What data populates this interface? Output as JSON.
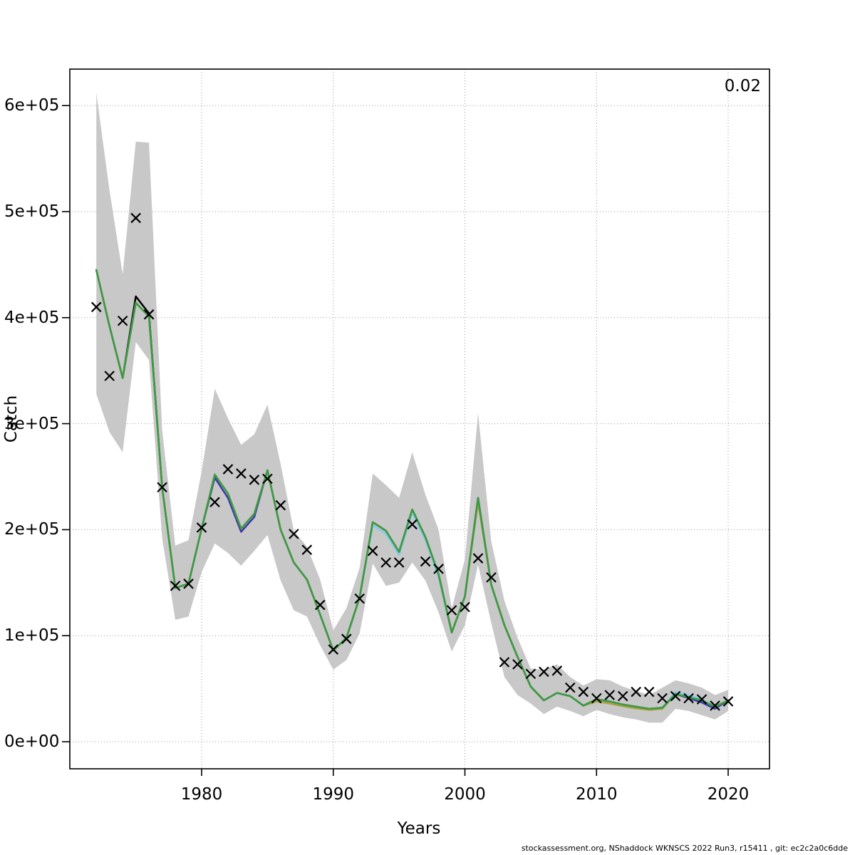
{
  "figure": {
    "ylabel": "Catch",
    "xlabel": "Years",
    "annotation_top_right": "0.02",
    "footer": "stockassessment.org, NShaddock WKNSCS 2022 Run3, r15411 , git: ec2c2a0c6dde"
  },
  "chart_data": {
    "type": "line",
    "title": "",
    "xlabel": "Years",
    "ylabel": "Catch",
    "legend_position": "none",
    "grid": "dotted",
    "x_ticks": [
      1980,
      1990,
      2000,
      2010,
      2020
    ],
    "y_ticks": [
      "0e+00",
      "1e+05",
      "2e+05",
      "3e+05",
      "4e+05",
      "5e+05",
      "6e+05"
    ],
    "y_tick_values": [
      0,
      100000,
      200000,
      300000,
      400000,
      500000,
      600000
    ],
    "xlim": [
      1970.0,
      2023.1
    ],
    "ylim": [
      -25500,
      634600
    ],
    "years": [
      1972,
      1973,
      1974,
      1975,
      1976,
      1977,
      1978,
      1979,
      1980,
      1981,
      1982,
      1983,
      1984,
      1985,
      1986,
      1987,
      1988,
      1989,
      1990,
      1991,
      1992,
      1993,
      1994,
      1995,
      1996,
      1997,
      1998,
      1999,
      2000,
      2001,
      2002,
      2003,
      2004,
      2005,
      2006,
      2007,
      2008,
      2009,
      2010,
      2011,
      2012,
      2013,
      2014,
      2015,
      2016,
      2017,
      2018,
      2019,
      2020
    ],
    "band": {
      "label": "confidence-interval",
      "color": "#c8c8c8",
      "top": [
        612000,
        520000,
        441000,
        566000,
        565000,
        294000,
        185000,
        190000,
        255000,
        333000,
        305000,
        280000,
        290000,
        318000,
        262000,
        199000,
        184000,
        153000,
        105000,
        126000,
        164000,
        253000,
        242000,
        230000,
        273000,
        233000,
        200000,
        126000,
        172000,
        310000,
        189000,
        133000,
        98000,
        69000,
        68000,
        73000,
        61000,
        53000,
        59000,
        58000,
        52000,
        48000,
        44000,
        51000,
        58000,
        55000,
        51000,
        44000,
        49000
      ],
      "bottom": [
        328000,
        292000,
        273000,
        377000,
        360000,
        192000,
        115000,
        118000,
        160000,
        187000,
        178000,
        166000,
        180000,
        195000,
        152000,
        124000,
        118000,
        91000,
        68000,
        77000,
        102000,
        168000,
        147000,
        150000,
        169000,
        152000,
        122000,
        85000,
        110000,
        167000,
        112000,
        61000,
        44000,
        36000,
        26000,
        33000,
        29000,
        24000,
        30000,
        26000,
        23000,
        21000,
        18000,
        18000,
        31000,
        29000,
        25000,
        21000,
        29000
      ]
    },
    "series": [
      {
        "name": "run-black",
        "color": "#000000",
        "values": [
          445000,
          392000,
          343000,
          420000,
          404000,
          240000,
          145000,
          149000,
          201000,
          252000,
          234000,
          201000,
          215000,
          256000,
          200000,
          169000,
          153000,
          120000,
          86000,
          98000,
          136000,
          207000,
          199000,
          179000,
          219000,
          193000,
          158000,
          103000,
          137000,
          230000,
          148000,
          110000,
          80000,
          52000,
          39000,
          46000,
          43000,
          34000,
          40000,
          38000,
          35000,
          33000,
          31000,
          32000,
          45000,
          42000,
          39000,
          33000,
          39000
        ]
      },
      {
        "name": "run-skyblue",
        "color": "#85cbe8",
        "values": [
          445000,
          392000,
          343000,
          414000,
          401000,
          240000,
          145000,
          149000,
          201000,
          252000,
          234000,
          201000,
          215000,
          256000,
          200000,
          169000,
          153000,
          120000,
          86000,
          98000,
          136000,
          204000,
          196000,
          176000,
          216000,
          190000,
          155000,
          103000,
          137000,
          230000,
          148000,
          110000,
          80000,
          52000,
          39000,
          46000,
          43000,
          34000,
          40000,
          38000,
          35000,
          33000,
          31000,
          32000,
          47000,
          44000,
          40000,
          33000,
          39000
        ]
      },
      {
        "name": "run-blue",
        "color": "#3b35ad",
        "values": [
          445000,
          392000,
          343000,
          414000,
          401000,
          240000,
          145000,
          149000,
          201000,
          249000,
          230000,
          198000,
          212000,
          256000,
          200000,
          169000,
          153000,
          120000,
          86000,
          98000,
          136000,
          207000,
          199000,
          179000,
          219000,
          193000,
          158000,
          103000,
          137000,
          230000,
          148000,
          110000,
          80000,
          52000,
          39000,
          46000,
          43000,
          34000,
          40000,
          38000,
          35000,
          33000,
          31000,
          32000,
          45000,
          41000,
          37000,
          31000,
          39000
        ]
      },
      {
        "name": "run-olive",
        "color": "#a8a03a",
        "values": [
          445000,
          392000,
          343000,
          414000,
          401000,
          240000,
          145000,
          149000,
          201000,
          252000,
          234000,
          201000,
          215000,
          256000,
          200000,
          169000,
          153000,
          120000,
          86000,
          98000,
          136000,
          207000,
          199000,
          179000,
          219000,
          193000,
          158000,
          103000,
          137000,
          226000,
          148000,
          110000,
          80000,
          52000,
          39000,
          46000,
          43000,
          34000,
          38000,
          36000,
          33500,
          31500,
          30000,
          31000,
          45000,
          42000,
          39000,
          33000,
          39000
        ]
      },
      {
        "name": "run-green",
        "color": "#3c9b41",
        "values": [
          445000,
          392000,
          343000,
          414000,
          401000,
          240000,
          145000,
          149000,
          201000,
          252000,
          234000,
          201000,
          215000,
          256000,
          200000,
          169000,
          153000,
          120000,
          86000,
          98000,
          136000,
          207000,
          199000,
          179000,
          219000,
          193000,
          158000,
          103000,
          137000,
          230000,
          148000,
          110000,
          80000,
          52000,
          39000,
          46000,
          43000,
          34000,
          40000,
          38000,
          35000,
          33000,
          31000,
          32000,
          45000,
          42000,
          39000,
          33000,
          39000
        ]
      }
    ],
    "observed": {
      "name": "observed-catch",
      "marker": "x",
      "color": "#000000",
      "values": [
        410000,
        345000,
        397000,
        494000,
        403000,
        240000,
        147000,
        149000,
        202000,
        226000,
        257000,
        253000,
        247000,
        248000,
        223000,
        196000,
        181000,
        129000,
        87000,
        97000,
        135000,
        180000,
        169000,
        169000,
        205000,
        170000,
        163000,
        124000,
        127000,
        173000,
        155000,
        75000,
        73000,
        64000,
        66000,
        67000,
        51000,
        47000,
        41000,
        44000,
        43000,
        47000,
        47000,
        41000,
        43000,
        41000,
        40000,
        34000,
        38000
      ]
    },
    "colors": {
      "frame": "#000000",
      "grid": "#999999",
      "band": "#c8c8c8",
      "text": "#000000"
    }
  }
}
